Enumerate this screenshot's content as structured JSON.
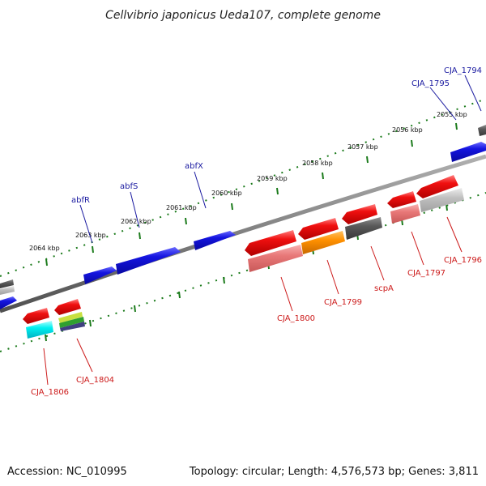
{
  "title": "Cellvibrio japonicus Ueda107, complete genome",
  "footer": {
    "accession": "Accession: NC_010995",
    "topology": "Topology: circular; Length: 4,576,573 bp; Genes: 3,811"
  },
  "colors": {
    "backbone": "#808080",
    "tick": "#1a7a1a",
    "forward_gene": "#1212d8",
    "reverse_gene": "#ee1010"
  },
  "kbp_ticks": [
    "2055 kbp",
    "2056 kbp",
    "2057 kbp",
    "2058 kbp",
    "2059 kbp",
    "2060 kbp",
    "2061 kbp",
    "2062 kbp",
    "2063 kbp",
    "2064 kbp"
  ],
  "forward_labels": [
    "CJA_1794",
    "CJA_1795",
    "abfX",
    "abfS",
    "abfR"
  ],
  "reverse_labels": [
    "CJA_1796",
    "CJA_1797",
    "scpA",
    "CJA_1799",
    "CJA_1800",
    "CJA_1804",
    "CJA_1806"
  ]
}
